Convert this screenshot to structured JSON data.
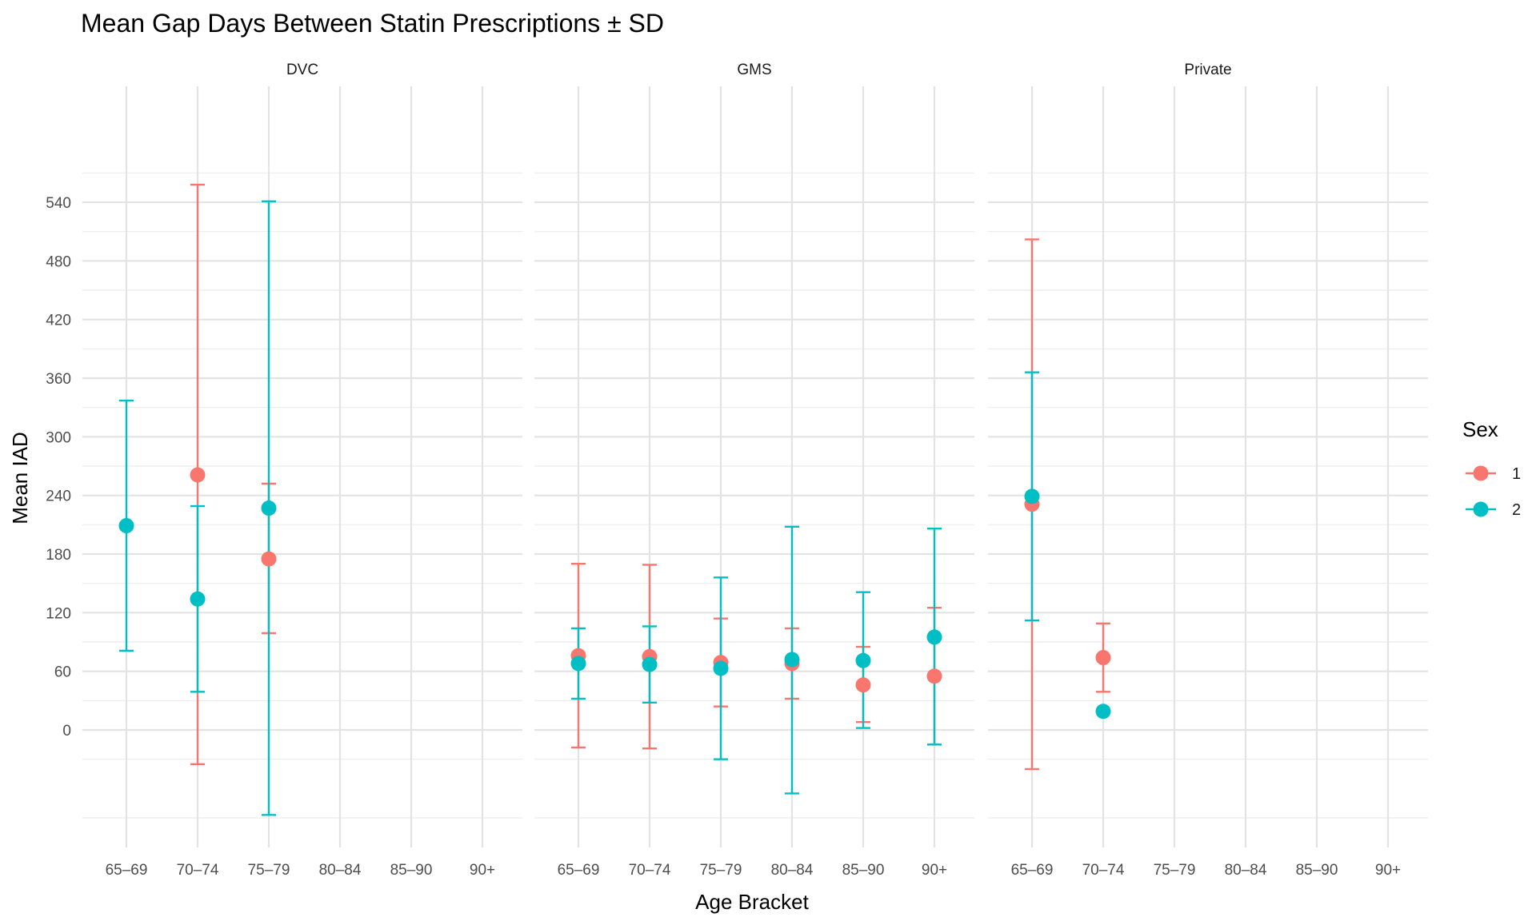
{
  "chart_data": {
    "type": "scatter",
    "title": "Mean Gap Days Between Statin Prescriptions ± SD",
    "xlabel": "Age Bracket",
    "ylabel": "Mean IAD",
    "categories": [
      "65–69",
      "70–74",
      "75–79",
      "80–84",
      "85–90",
      "90+"
    ],
    "y_ticks": [
      0,
      60,
      120,
      180,
      240,
      300,
      360,
      420,
      480,
      540
    ],
    "ylim": [
      -120,
      580
    ],
    "grid": true,
    "facets": [
      "DVC",
      "GMS",
      "Private"
    ],
    "legend": {
      "title": "Sex",
      "position": "right",
      "entries": [
        "1",
        "2"
      ]
    },
    "colors": {
      "1": "#F8766D",
      "2": "#00BFC4"
    },
    "series": [
      {
        "name": "1",
        "points": [
          {
            "facet": "DVC",
            "x": "70–74",
            "y": 261,
            "lo": -35,
            "hi": 558
          },
          {
            "facet": "DVC",
            "x": "75–79",
            "y": 175,
            "lo": 99,
            "hi": 252
          },
          {
            "facet": "GMS",
            "x": "65–69",
            "y": 76,
            "lo": -18,
            "hi": 170
          },
          {
            "facet": "GMS",
            "x": "70–74",
            "y": 75,
            "lo": -19,
            "hi": 169
          },
          {
            "facet": "GMS",
            "x": "75–79",
            "y": 69,
            "lo": 24,
            "hi": 114
          },
          {
            "facet": "GMS",
            "x": "80–84",
            "y": 68,
            "lo": 32,
            "hi": 104
          },
          {
            "facet": "GMS",
            "x": "85–90",
            "y": 46,
            "lo": 8,
            "hi": 85
          },
          {
            "facet": "GMS",
            "x": "90+",
            "y": 55,
            "lo": -15,
            "hi": 125
          },
          {
            "facet": "Private",
            "x": "65–69",
            "y": 231,
            "lo": -40,
            "hi": 502
          },
          {
            "facet": "Private",
            "x": "70–74",
            "y": 74,
            "lo": 39,
            "hi": 109
          }
        ]
      },
      {
        "name": "2",
        "points": [
          {
            "facet": "DVC",
            "x": "65–69",
            "y": 209,
            "lo": 81,
            "hi": 337
          },
          {
            "facet": "DVC",
            "x": "70–74",
            "y": 134,
            "lo": 39,
            "hi": 229
          },
          {
            "facet": "DVC",
            "x": "75–79",
            "y": 227,
            "lo": -87,
            "hi": 541
          },
          {
            "facet": "GMS",
            "x": "65–69",
            "y": 68,
            "lo": 32,
            "hi": 104
          },
          {
            "facet": "GMS",
            "x": "70–74",
            "y": 67,
            "lo": 28,
            "hi": 106
          },
          {
            "facet": "GMS",
            "x": "75–79",
            "y": 63,
            "lo": -30,
            "hi": 156
          },
          {
            "facet": "GMS",
            "x": "80–84",
            "y": 72,
            "lo": -65,
            "hi": 208
          },
          {
            "facet": "GMS",
            "x": "85–90",
            "y": 71,
            "lo": 2,
            "hi": 141
          },
          {
            "facet": "GMS",
            "x": "90+",
            "y": 95,
            "lo": -15,
            "hi": 206
          },
          {
            "facet": "Private",
            "x": "65–69",
            "y": 239,
            "lo": 112,
            "hi": 366
          },
          {
            "facet": "Private",
            "x": "70–74",
            "y": 19,
            "lo": 19,
            "hi": 19
          }
        ]
      }
    ]
  }
}
